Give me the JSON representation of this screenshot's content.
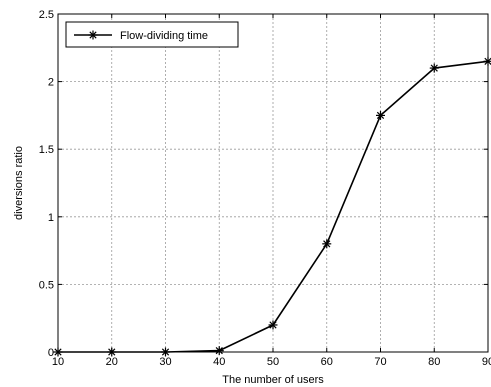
{
  "chart_data": {
    "type": "line",
    "title": "",
    "xlabel": "The number of users",
    "ylabel": "diversions ratio",
    "xlim": [
      10,
      90
    ],
    "ylim": [
      0,
      2.5
    ],
    "x_ticks": [
      "10",
      "20",
      "30",
      "40",
      "50",
      "60",
      "70",
      "80",
      "90"
    ],
    "y_ticks": [
      "0",
      "0.5",
      "1",
      "1.5",
      "2",
      "2.5"
    ],
    "grid": true,
    "legend_position": "top-left",
    "series": [
      {
        "name": "Flow-dividing time",
        "x": [
          10,
          20,
          30,
          40,
          50,
          60,
          70,
          80,
          90
        ],
        "y": [
          0,
          0,
          0,
          0.01,
          0.2,
          0.8,
          1.75,
          2.1,
          2.15
        ],
        "color": "#000000",
        "marker": "star"
      }
    ]
  }
}
